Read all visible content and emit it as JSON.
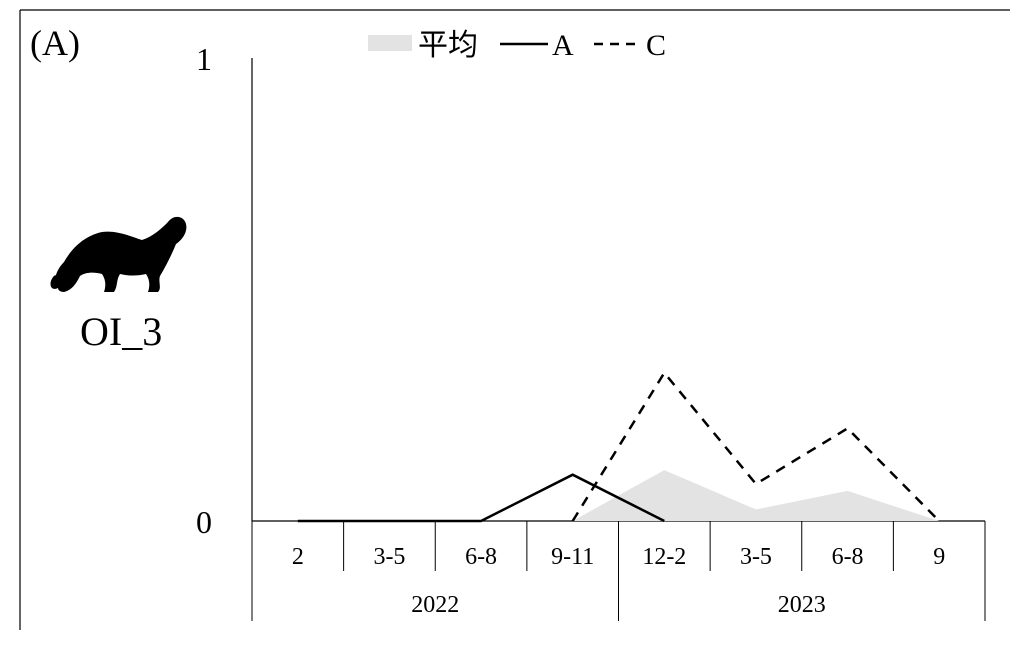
{
  "panel_label": "(A)",
  "animal": {
    "label": "OI_3",
    "icon": "ferret-silhouette-icon"
  },
  "chart_data": {
    "type": "line",
    "categories": [
      "2",
      "3-5",
      "6-8",
      "9-11",
      "12-2",
      "3-5",
      "6-8",
      "9"
    ],
    "groups": [
      {
        "label": "2022",
        "span": [
          0,
          3
        ]
      },
      {
        "label": "2023",
        "span": [
          4,
          7
        ]
      }
    ],
    "series": [
      {
        "name": "平均",
        "kind": "area",
        "color": "#e3e3e3",
        "values": [
          null,
          null,
          null,
          0.0,
          0.11,
          0.025,
          0.065,
          0.0
        ]
      },
      {
        "name": "A",
        "kind": "line",
        "dash": "solid",
        "color": "#000000",
        "values": [
          0,
          0,
          0,
          0.1,
          0,
          null,
          null,
          null
        ]
      },
      {
        "name": "C",
        "kind": "line",
        "dash": "dashed",
        "color": "#000000",
        "values": [
          null,
          null,
          null,
          0,
          0.32,
          0.08,
          0.2,
          0
        ]
      }
    ],
    "y_ticks": [
      "0",
      "1"
    ],
    "ylim": [
      0,
      1
    ],
    "legend": "top"
  }
}
